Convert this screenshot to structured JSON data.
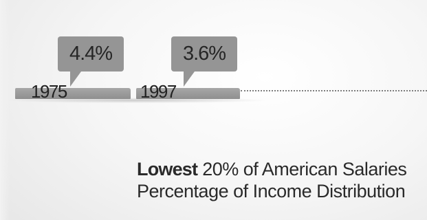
{
  "chart_data": {
    "type": "bar",
    "title_bold": "Lowest",
    "title_rest": " 20% of American Salaries",
    "subtitle": "Percentage of Income Distribution",
    "categories": [
      "1975",
      "1997"
    ],
    "values": [
      4.4,
      3.6
    ],
    "value_labels": [
      "4.4%",
      "3.6%"
    ],
    "unit": "%",
    "colors": {
      "bar": "#9a9a9a",
      "callout": "#959595",
      "text": "#222222"
    }
  }
}
